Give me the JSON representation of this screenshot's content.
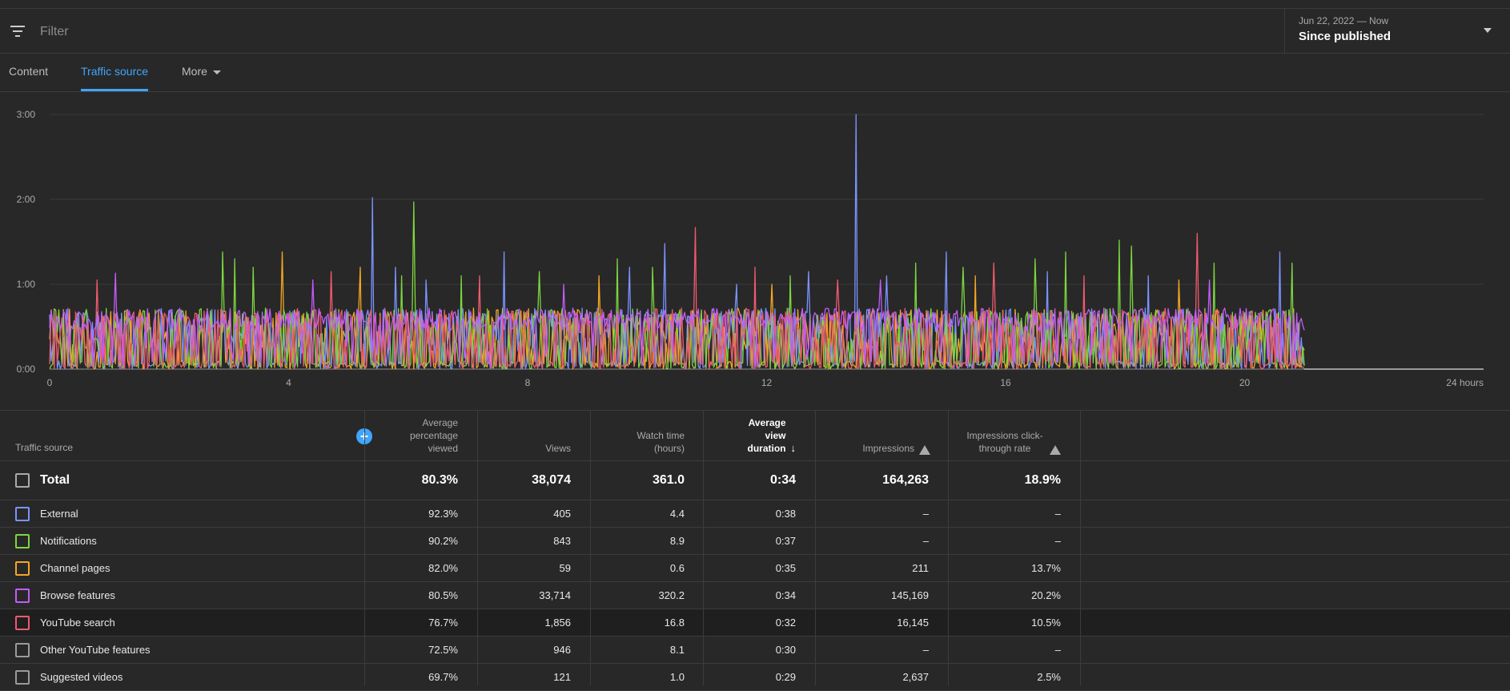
{
  "filter": {
    "placeholder": "Filter"
  },
  "date": {
    "range": "Jun 22, 2022 — Now",
    "label": "Since published"
  },
  "tabs": [
    {
      "label": "Content",
      "active": false
    },
    {
      "label": "Traffic source",
      "active": true
    },
    {
      "label": "More",
      "active": false
    }
  ],
  "colors": {
    "External": "#7b93ff",
    "Notifications": "#7dd63f",
    "Channel pages": "#f5a623",
    "Browse features": "#c25cf6",
    "YouTube search": "#f05a6e",
    "Other YouTube features": "#9a9a9a",
    "Suggested videos": "#9a9a9a"
  },
  "chart_data": {
    "type": "line",
    "xlabel": "",
    "ylabel": "",
    "x_ticks": [
      "0",
      "4",
      "8",
      "12",
      "16",
      "20",
      "24 hours"
    ],
    "x_range": [
      0,
      24
    ],
    "y_ticks": [
      "0:00",
      "1:00",
      "2:00",
      "3:00"
    ],
    "y_range_minutes": [
      0,
      3
    ],
    "data_extent_hours": 21,
    "grid": true,
    "series": [
      {
        "name": "External",
        "spikes": [
          [
            5.4,
            2.02
          ],
          [
            5.8,
            1.2
          ],
          [
            6.3,
            1.05
          ],
          [
            7.6,
            1.38
          ],
          [
            9.7,
            1.2
          ],
          [
            10.3,
            1.48
          ],
          [
            11.5,
            1.0
          ],
          [
            12.7,
            1.15
          ],
          [
            13.5,
            3.0
          ],
          [
            14.0,
            1.1
          ],
          [
            15.0,
            1.38
          ],
          [
            16.7,
            1.15
          ],
          [
            18.4,
            1.1
          ],
          [
            20.6,
            1.38
          ]
        ]
      },
      {
        "name": "Notifications",
        "spikes": [
          [
            2.9,
            1.38
          ],
          [
            3.1,
            1.3
          ],
          [
            3.4,
            1.2
          ],
          [
            5.9,
            1.1
          ],
          [
            6.1,
            1.97
          ],
          [
            6.9,
            1.1
          ],
          [
            8.2,
            1.15
          ],
          [
            9.5,
            1.3
          ],
          [
            10.1,
            1.2
          ],
          [
            12.4,
            1.1
          ],
          [
            14.5,
            1.25
          ],
          [
            15.3,
            1.2
          ],
          [
            16.5,
            1.3
          ],
          [
            17.0,
            1.38
          ],
          [
            17.9,
            1.52
          ],
          [
            18.1,
            1.45
          ],
          [
            19.5,
            1.25
          ],
          [
            20.8,
            1.25
          ]
        ]
      },
      {
        "name": "Channel pages",
        "spikes": [
          [
            3.9,
            1.38
          ],
          [
            5.2,
            1.2
          ],
          [
            9.2,
            1.1
          ],
          [
            12.1,
            1.0
          ],
          [
            15.5,
            1.1
          ],
          [
            18.9,
            1.05
          ]
        ]
      },
      {
        "name": "Browse features",
        "spikes": [
          [
            1.1,
            1.13
          ],
          [
            4.4,
            1.05
          ],
          [
            8.6,
            1.0
          ],
          [
            13.9,
            1.05
          ],
          [
            19.4,
            1.05
          ]
        ]
      },
      {
        "name": "YouTube search",
        "spikes": [
          [
            0.8,
            1.05
          ],
          [
            4.7,
            1.15
          ],
          [
            7.2,
            1.1
          ],
          [
            10.8,
            1.67
          ],
          [
            11.8,
            1.2
          ],
          [
            13.2,
            1.05
          ],
          [
            15.8,
            1.25
          ],
          [
            17.3,
            1.1
          ],
          [
            19.2,
            1.6
          ]
        ]
      }
    ]
  },
  "table": {
    "columns": [
      {
        "label": "Traffic source"
      },
      {
        "label": "Average percentage viewed"
      },
      {
        "label": "Views"
      },
      {
        "label": "Watch time (hours)"
      },
      {
        "label": "Average view duration"
      },
      {
        "label": "Impressions"
      },
      {
        "label": "Impressions click-through rate"
      }
    ],
    "total": {
      "name": "Total",
      "avg_pct": "80.3%",
      "views": "38,074",
      "watch": "361.0",
      "avd": "0:34",
      "impressions": "164,263",
      "ctr": "18.9%"
    },
    "rows": [
      {
        "name": "External",
        "avg_pct": "92.3%",
        "views": "405",
        "watch": "4.4",
        "avd": "0:38",
        "impressions": "–",
        "ctr": "–"
      },
      {
        "name": "Notifications",
        "avg_pct": "90.2%",
        "views": "843",
        "watch": "8.9",
        "avd": "0:37",
        "impressions": "–",
        "ctr": "–"
      },
      {
        "name": "Channel pages",
        "avg_pct": "82.0%",
        "views": "59",
        "watch": "0.6",
        "avd": "0:35",
        "impressions": "211",
        "ctr": "13.7%"
      },
      {
        "name": "Browse features",
        "avg_pct": "80.5%",
        "views": "33,714",
        "watch": "320.2",
        "avd": "0:34",
        "impressions": "145,169",
        "ctr": "20.2%"
      },
      {
        "name": "YouTube search",
        "avg_pct": "76.7%",
        "views": "1,856",
        "watch": "16.8",
        "avd": "0:32",
        "impressions": "16,145",
        "ctr": "10.5%"
      },
      {
        "name": "Other YouTube features",
        "avg_pct": "72.5%",
        "views": "946",
        "watch": "8.1",
        "avd": "0:30",
        "impressions": "–",
        "ctr": "–"
      },
      {
        "name": "Suggested videos",
        "avg_pct": "69.7%",
        "views": "121",
        "watch": "1.0",
        "avd": "0:29",
        "impressions": "2,637",
        "ctr": "2.5%"
      }
    ]
  }
}
